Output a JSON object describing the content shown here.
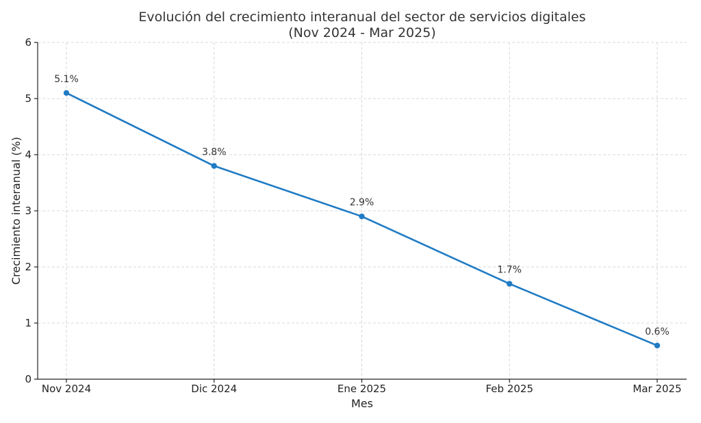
{
  "chart_data": {
    "type": "line",
    "title": "Evolución del crecimiento interanual del sector de servicios digitales",
    "subtitle": "(Nov 2024 - Mar 2025)",
    "xlabel": "Mes",
    "ylabel": "Crecimiento interanual (%)",
    "categories": [
      "Nov 2024",
      "Dic 2024",
      "Ene 2025",
      "Feb 2025",
      "Mar 2025"
    ],
    "series": [
      {
        "values": [
          5.1,
          3.8,
          2.9,
          1.7,
          0.6
        ],
        "labels": [
          "5.1%",
          "3.8%",
          "2.9%",
          "1.7%",
          "0.6%"
        ],
        "color": "#1f7bc4"
      }
    ],
    "ylim": [
      0,
      6
    ],
    "yticks": [
      "0",
      "1",
      "2",
      "3",
      "4",
      "5",
      "6"
    ],
    "grid": true
  }
}
